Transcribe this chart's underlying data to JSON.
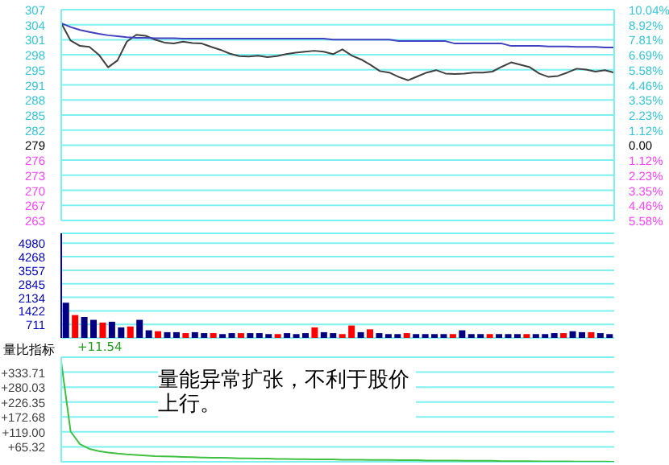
{
  "chart_data": [
    {
      "type": "line",
      "categories": [
        null,
        null,
        null,
        null,
        null,
        null,
        null,
        null,
        null,
        null,
        null,
        null,
        null,
        null,
        null,
        null,
        null,
        null,
        null,
        null,
        null,
        null,
        null,
        null,
        null,
        null,
        null,
        null,
        null,
        null,
        null,
        null,
        null,
        null,
        null,
        null,
        null,
        null,
        null,
        null,
        null,
        null,
        null,
        null,
        null,
        null,
        null,
        null,
        null,
        null,
        null,
        null,
        null,
        null,
        null,
        null,
        null,
        null,
        null,
        null
      ],
      "series": [
        {
          "color": "#404040",
          "values": [
            304.2,
            300.6,
            299.5,
            299.3,
            297.7,
            295.1,
            296.5,
            300.4,
            301.8,
            301.6,
            300.8,
            300.2,
            300.0,
            300.4,
            300.1,
            300.0,
            299.3,
            298.7,
            297.9,
            297.4,
            297.3,
            297.5,
            297.2,
            297.4,
            297.8,
            298.1,
            298.3,
            298.5,
            298.3,
            297.8,
            298.8,
            297.5,
            296.7,
            295.6,
            294.3,
            294.0,
            293.1,
            292.4,
            293.2,
            294.0,
            294.5,
            293.8,
            293.7,
            293.8,
            294.0,
            294.0,
            294.2,
            295.2,
            296.1,
            295.6,
            295.1,
            293.8,
            293.1,
            293.3,
            294.0,
            294.8,
            294.6,
            294.2,
            294.5,
            294.0
          ]
        },
        {
          "color": "#4040c0",
          "values": [
            304.2,
            303.4,
            302.8,
            302.4,
            302.0,
            301.7,
            301.5,
            301.3,
            301.2,
            301.2,
            301.1,
            301.1,
            301.1,
            301.0,
            301.0,
            301.0,
            301.0,
            301.0,
            301.0,
            301.0,
            301.0,
            301.0,
            301.0,
            301.0,
            301.0,
            301.0,
            301.0,
            301.0,
            301.0,
            300.8,
            300.8,
            300.8,
            300.8,
            300.8,
            300.8,
            300.8,
            300.5,
            300.5,
            300.5,
            300.5,
            300.5,
            300.5,
            300.0,
            300.0,
            300.0,
            300.0,
            300.0,
            300.0,
            299.5,
            299.5,
            299.5,
            299.5,
            299.4,
            299.4,
            299.4,
            299.3,
            299.3,
            299.3,
            299.2,
            299.2
          ]
        }
      ],
      "ylim": [
        263.44,
        307
      ],
      "yticks": [
        {
          "value": 263.44,
          "label": "263"
        },
        {
          "value": 266.56,
          "label": "267"
        },
        {
          "value": 269.67,
          "label": "270"
        },
        {
          "value": 272.78,
          "label": "273"
        },
        {
          "value": 275.89,
          "label": "276"
        },
        {
          "value": 279,
          "label": "279"
        },
        {
          "value": 282.11,
          "label": "282"
        },
        {
          "value": 285.22,
          "label": "285"
        },
        {
          "value": 288.33,
          "label": "288"
        },
        {
          "value": 291.44,
          "label": "291"
        },
        {
          "value": 294.56,
          "label": "295"
        },
        {
          "value": 297.67,
          "label": "298"
        },
        {
          "value": 300.78,
          "label": "301"
        },
        {
          "value": 303.89,
          "label": "304"
        },
        {
          "value": 307,
          "label": "307"
        }
      ],
      "y2lim": [
        -5.58,
        10.04
      ],
      "y2ticks": [
        {
          "value": -5.58,
          "label": "5.58%"
        },
        {
          "value": -4.46,
          "label": "4.46%"
        },
        {
          "value": -3.35,
          "label": "3.35%"
        },
        {
          "value": -2.23,
          "label": "2.23%"
        },
        {
          "value": -1.12,
          "label": "1.12%"
        },
        {
          "value": 0,
          "label": "0.00"
        },
        {
          "value": 1.12,
          "label": "1.12%"
        },
        {
          "value": 2.23,
          "label": "2.23%"
        },
        {
          "value": 3.35,
          "label": "3.35%"
        },
        {
          "value": 4.46,
          "label": "4.46%"
        },
        {
          "value": 5.58,
          "label": "5.58%"
        },
        {
          "value": 6.69,
          "label": "6.69%"
        },
        {
          "value": 7.81,
          "label": "7.81%"
        },
        {
          "value": 8.92,
          "label": "8.92%"
        },
        {
          "value": 10.04,
          "label": "10.04%"
        }
      ],
      "grid": "y",
      "tick_labels": "y"
    },
    {
      "type": "bar",
      "categories": [
        null,
        null,
        null,
        null,
        null,
        null,
        null,
        null,
        null,
        null,
        null,
        null,
        null,
        null,
        null,
        null,
        null,
        null,
        null,
        null,
        null,
        null,
        null,
        null,
        null,
        null,
        null,
        null,
        null,
        null,
        null,
        null,
        null,
        null,
        null,
        null,
        null,
        null,
        null,
        null,
        null,
        null,
        null,
        null,
        null,
        null,
        null,
        null,
        null,
        null,
        null,
        null,
        null,
        null,
        null,
        null,
        null,
        null,
        null,
        null
      ],
      "values": [
        1850,
        1200,
        1100,
        950,
        800,
        850,
        550,
        600,
        950,
        400,
        350,
        300,
        300,
        250,
        300,
        250,
        250,
        200,
        250,
        250,
        250,
        250,
        200,
        200,
        250,
        200,
        250,
        550,
        300,
        250,
        200,
        650,
        300,
        450,
        250,
        200,
        200,
        250,
        200,
        200,
        200,
        200,
        200,
        400,
        200,
        200,
        200,
        200,
        200,
        200,
        200,
        200,
        200,
        250,
        250,
        350,
        300,
        300,
        250,
        200
      ],
      "colors": [
        "#000080",
        "#ff0000",
        "#000080",
        "#000080",
        "#ff0000",
        "#000080",
        "#000080",
        "#ff0000",
        "#000080",
        "#000080",
        "#ff0000",
        "#000080",
        "#000080",
        "#ff0000",
        "#000080",
        "#000080",
        "#ff0000",
        "#000080",
        "#000080",
        "#ff0000",
        "#000080",
        "#000080",
        "#000080",
        "#ff0000",
        "#000080",
        "#000080",
        "#000080",
        "#ff0000",
        "#000080",
        "#000080",
        "#ff0000",
        "#ff0000",
        "#000080",
        "#ff0000",
        "#000080",
        "#000080",
        "#000080",
        "#ff0000",
        "#000080",
        "#000080",
        "#000080",
        "#000080",
        "#ff0000",
        "#000080",
        "#000080",
        "#000080",
        "#ff0000",
        "#000080",
        "#000080",
        "#000080",
        "#ff0000",
        "#000080",
        "#000080",
        "#000080",
        "#ff0000",
        "#000080",
        "#000080",
        "#ff0000",
        "#000080",
        "#000080"
      ],
      "ylim": [
        0,
        5500
      ],
      "yticks": [
        711,
        1422,
        2134,
        2845,
        3557,
        4268,
        4980
      ],
      "grid": "y",
      "tick_labels": "y"
    },
    {
      "type": "line",
      "title": "量比指标",
      "categories": [
        null,
        null,
        null,
        null,
        null,
        null,
        null,
        null,
        null,
        null,
        null,
        null,
        null,
        null,
        null,
        null,
        null,
        null,
        null,
        null,
        null,
        null,
        null,
        null,
        null,
        null,
        null,
        null,
        null,
        null,
        null,
        null,
        null,
        null,
        null,
        null,
        null,
        null,
        null,
        null,
        null,
        null,
        null,
        null,
        null,
        null,
        null,
        null,
        null,
        null,
        null,
        null,
        null,
        null,
        null,
        null,
        null,
        null,
        null,
        null
      ],
      "series": [
        {
          "color": "#40c040",
          "values": [
            370,
            120,
            75,
            58,
            50,
            45,
            41,
            38,
            36,
            34,
            32,
            31,
            30,
            29,
            28,
            27,
            26,
            26,
            25,
            24,
            24,
            23,
            23,
            22,
            22,
            21,
            21,
            20,
            20,
            20,
            19,
            19,
            19,
            18,
            18,
            18,
            17,
            17,
            17,
            16,
            16,
            16,
            16,
            15,
            15,
            15,
            15,
            14,
            14,
            14,
            14,
            13,
            13,
            13,
            13,
            12,
            12,
            12,
            12,
            11.54
          ]
        }
      ],
      "ylim": [
        11.54,
        387.39
      ],
      "yticks": [
        {
          "value": 65.32,
          "label": "+65.32"
        },
        {
          "value": 119.0,
          "label": "+119.00"
        },
        {
          "value": 172.68,
          "label": "+172.68"
        },
        {
          "value": 226.35,
          "label": "+226.35"
        },
        {
          "value": 280.03,
          "label": "+280.03"
        },
        {
          "value": 333.71,
          "label": "+333.71"
        }
      ],
      "annotations": [
        "+11.54",
        "量能异常扩张，不利于股价上行。"
      ],
      "grid": "y",
      "tick_labels": "y"
    }
  ]
}
